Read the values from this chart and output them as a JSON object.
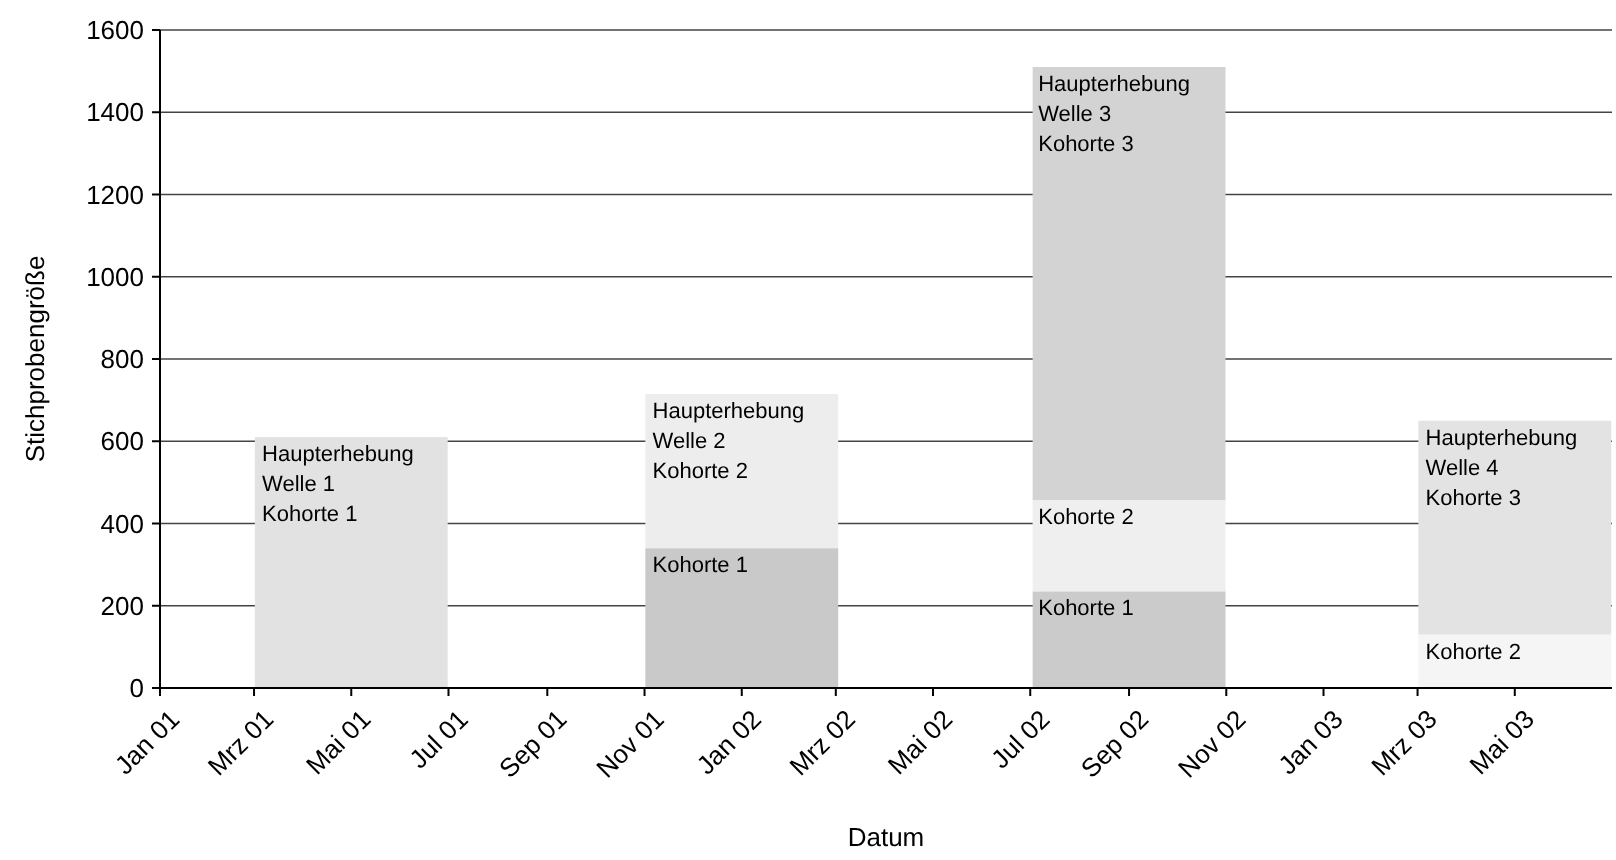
{
  "chart_data": {
    "type": "bar",
    "stacked": true,
    "xlabel": "Datum",
    "ylabel": "Stichprobengröße",
    "x": [
      "2001-05",
      "2002-01",
      "2002-09",
      "2003-05"
    ],
    "series": [
      {
        "colors": [
          "#e2e2e2",
          "#c9c9c9",
          "#cbcbcb",
          "#f5f5f5"
        ],
        "values": [
          610,
          340,
          235,
          130
        ]
      },
      {
        "colors": [
          null,
          "#ededed",
          "#efefef",
          "#e3e3e3"
        ],
        "values": [
          null,
          375,
          222,
          520
        ]
      },
      {
        "colors": [
          null,
          null,
          "#d3d3d3",
          null
        ],
        "values": [
          null,
          null,
          1053,
          null
        ]
      }
    ],
    "xlim": [
      "2001-01",
      "2003-07"
    ],
    "xticks": [
      {
        "value": "2001-01",
        "label": "Jan 01"
      },
      {
        "value": "2001-03",
        "label": "Mrz 01"
      },
      {
        "value": "2001-05",
        "label": "Mai 01"
      },
      {
        "value": "2001-07",
        "label": "Jul 01"
      },
      {
        "value": "2001-09",
        "label": "Sep 01"
      },
      {
        "value": "2001-11",
        "label": "Nov 01"
      },
      {
        "value": "2002-01",
        "label": "Jan 02"
      },
      {
        "value": "2002-03",
        "label": "Mrz 02"
      },
      {
        "value": "2002-05",
        "label": "Mai 02"
      },
      {
        "value": "2002-07",
        "label": "Jul 02"
      },
      {
        "value": "2002-09",
        "label": "Sep 02"
      },
      {
        "value": "2002-11",
        "label": "Nov 02"
      },
      {
        "value": "2003-01",
        "label": "Jan 03"
      },
      {
        "value": "2003-03",
        "label": "Mrz 03"
      },
      {
        "value": "2003-05",
        "label": "Mai 03"
      }
    ],
    "ylim": [
      0,
      1600
    ],
    "yticks": [
      0,
      200,
      400,
      600,
      800,
      1000,
      1200,
      1400,
      1600
    ],
    "grid": "y",
    "annotations": [
      {
        "text": "Haupterhebung\nWelle 1\nKohorte 1",
        "x": "2001-03",
        "y": 610
      },
      {
        "text": "Kohorte 1",
        "x": "2001-11",
        "y": 340
      },
      {
        "text": "Haupterhebung\nWelle 2\nKohorte 2",
        "x": "2001-11",
        "y": 715
      },
      {
        "text": "Kohorte 1",
        "x": "2002-07",
        "y": 235
      },
      {
        "text": "Kohorte 2",
        "x": "2002-07",
        "y": 457
      },
      {
        "text": "Haupterhebung\nWelle 3\nKohorte 3",
        "x": "2002-07",
        "y": 1510
      },
      {
        "text": "Kohorte 2",
        "x": "2003-03",
        "y": 130
      },
      {
        "text": "Haupterhebung\nWelle 4\nKohorte 3",
        "x": "2003-03",
        "y": 650
      }
    ]
  }
}
